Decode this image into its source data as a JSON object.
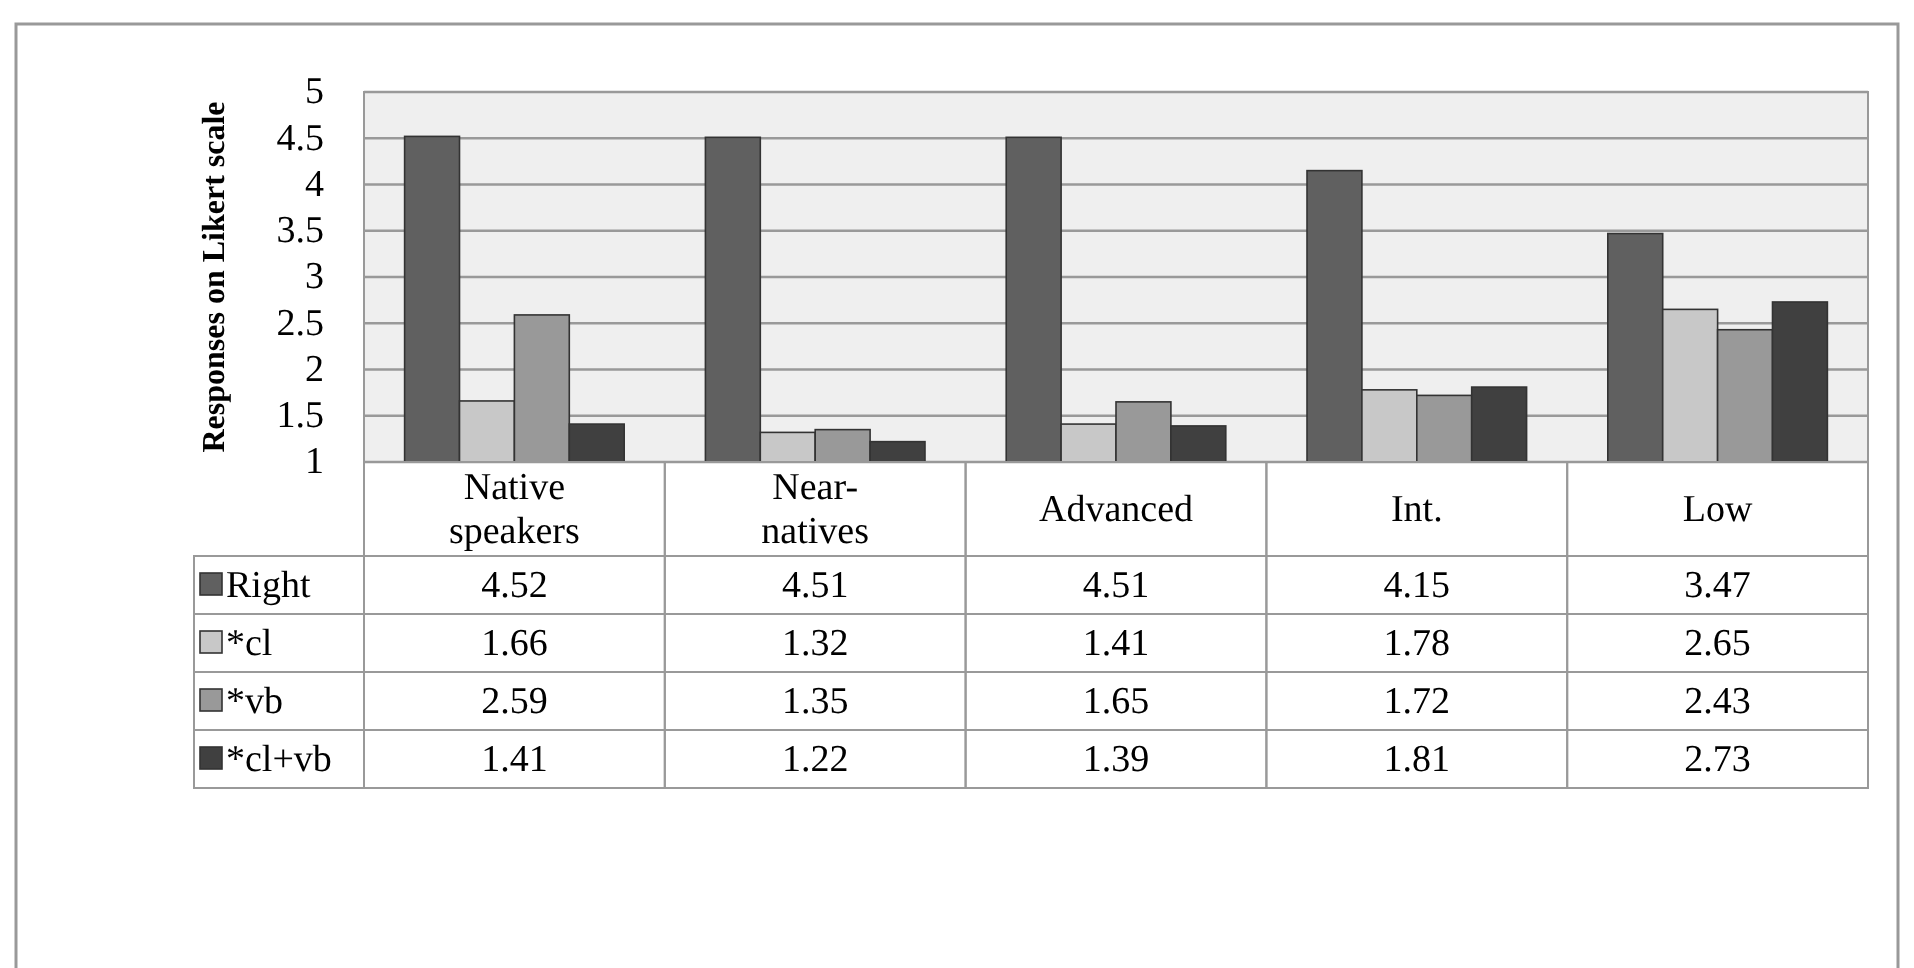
{
  "chart_data": {
    "type": "bar",
    "ylabel": "Responses on Likert scale",
    "categories": [
      "Native speakers",
      "Near-natives",
      "Advanced",
      "Int.",
      "Low"
    ],
    "series": [
      {
        "name": "Right",
        "color": "#606060",
        "values": [
          4.52,
          4.51,
          4.51,
          4.15,
          3.47
        ]
      },
      {
        "name": "*cl",
        "color": "#c8c8c8",
        "values": [
          1.66,
          1.32,
          1.41,
          1.78,
          2.65
        ]
      },
      {
        "name": "*vb",
        "color": "#999999",
        "values": [
          2.59,
          1.35,
          1.65,
          1.72,
          2.43
        ]
      },
      {
        "name": "*cl+vb",
        "color": "#404040",
        "values": [
          1.41,
          1.22,
          1.39,
          1.81,
          2.73
        ]
      }
    ],
    "ylim": [
      1,
      5
    ],
    "yticks": [
      1,
      1.5,
      2,
      2.5,
      3,
      3.5,
      4,
      4.5,
      5
    ],
    "grid": "y",
    "data_labels": true,
    "legend": "bottom"
  }
}
